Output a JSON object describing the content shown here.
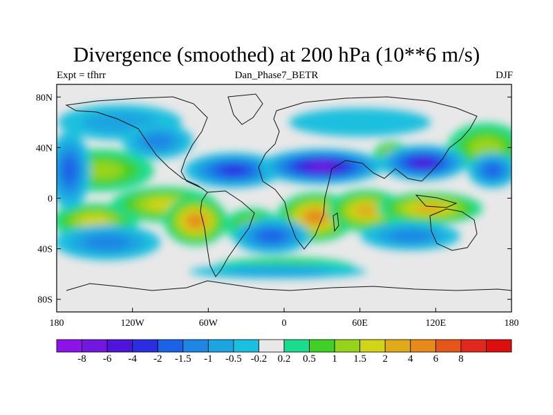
{
  "title": "Divergence (smoothed) at 200 hPa (10**6 m/s)",
  "subtitle_left": "Expt = tfhrr",
  "subtitle_center": "Dan_Phase7_BETR",
  "subtitle_right": "DJF",
  "map": {
    "projection": "cylindrical-equidistant",
    "lon_range": [
      -180,
      180
    ],
    "lat_range": [
      -90,
      90
    ],
    "lat_ticks": [
      "80N",
      "40N",
      "0",
      "40S",
      "80S"
    ],
    "lon_ticks": [
      "180",
      "120W",
      "60W",
      "0",
      "60E",
      "120E",
      "180"
    ]
  },
  "colorbar": {
    "colors": [
      "#8b14e8",
      "#7416e2",
      "#4f14dc",
      "#2a2ee0",
      "#1a62e6",
      "#1e86e4",
      "#1ca4e0",
      "#1ac0de",
      "#e8e8e8",
      "#1adc8c",
      "#40d026",
      "#96d41c",
      "#d2d418",
      "#e0aa1a",
      "#e68a1a",
      "#e4561a",
      "#e2281c",
      "#dc0e0e"
    ],
    "labels": [
      "-8",
      "-6",
      "-4",
      "-2",
      "-1.5",
      "-1",
      "-0.5",
      "-0.2",
      "0.2",
      "0.5",
      "1",
      "1.5",
      "2",
      "4",
      "6",
      "8"
    ]
  },
  "blobs": [
    {
      "lon": -145,
      "lat": 22,
      "rx": 30,
      "ry": 12,
      "v": 3
    },
    {
      "lon": -150,
      "lat": -18,
      "rx": 25,
      "ry": 10,
      "v": 4
    },
    {
      "lon": -95,
      "lat": -5,
      "rx": 30,
      "ry": 10,
      "v": 4
    },
    {
      "lon": -70,
      "lat": -18,
      "rx": 18,
      "ry": 14,
      "v": 6
    },
    {
      "lon": -25,
      "lat": -22,
      "rx": 16,
      "ry": 10,
      "v": 3
    },
    {
      "lon": 25,
      "lat": -15,
      "rx": 22,
      "ry": 14,
      "v": 6
    },
    {
      "lon": 65,
      "lat": -10,
      "rx": 22,
      "ry": 12,
      "v": 5
    },
    {
      "lon": 115,
      "lat": -8,
      "rx": 30,
      "ry": 9,
      "v": 5
    },
    {
      "lon": 160,
      "lat": 40,
      "rx": 22,
      "ry": 14,
      "v": 3
    },
    {
      "lon": 85,
      "lat": 35,
      "rx": 10,
      "ry": 7,
      "v": 4
    },
    {
      "lon": 0,
      "lat": -55,
      "rx": 40,
      "ry": 6,
      "v": 2
    },
    {
      "lon": -170,
      "lat": 22,
      "rx": 12,
      "ry": 22,
      "v": -4
    },
    {
      "lon": -40,
      "lat": 22,
      "rx": 28,
      "ry": 10,
      "v": -5
    },
    {
      "lon": 30,
      "lat": 25,
      "rx": 35,
      "ry": 10,
      "v": -7
    },
    {
      "lon": 110,
      "lat": 28,
      "rx": 25,
      "ry": 10,
      "v": -6
    },
    {
      "lon": 165,
      "lat": 22,
      "rx": 14,
      "ry": 10,
      "v": -4
    },
    {
      "lon": -140,
      "lat": -35,
      "rx": 30,
      "ry": 10,
      "v": -3
    },
    {
      "lon": -10,
      "lat": -30,
      "rx": 22,
      "ry": 10,
      "v": -4
    },
    {
      "lon": 100,
      "lat": -30,
      "rx": 28,
      "ry": 8,
      "v": -3
    },
    {
      "lon": -130,
      "lat": 60,
      "rx": 35,
      "ry": 10,
      "v": -2
    },
    {
      "lon": -5,
      "lat": -58,
      "rx": 50,
      "ry": 4,
      "v": -2
    },
    {
      "lon": -100,
      "lat": 45,
      "rx": 20,
      "ry": 10,
      "v": -3
    },
    {
      "lon": 60,
      "lat": 60,
      "rx": 40,
      "ry": 8,
      "v": -1
    }
  ]
}
